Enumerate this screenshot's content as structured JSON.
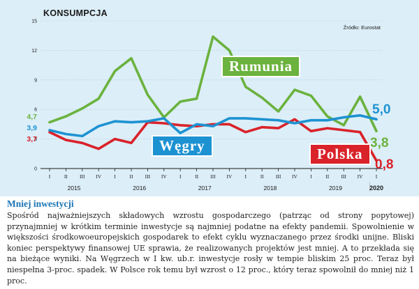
{
  "colors": {
    "panel_bg": "#dceef8",
    "rumunia": "#6bb23e",
    "wegry": "#1d92d2",
    "polska": "#d9222a",
    "axis_text": "#1a1a1a",
    "grid": "#a9c7d8"
  },
  "chart_data": {
    "type": "line",
    "title": "KONSUMPCJA",
    "source": "Źródło: Eurostat",
    "ylim": [
      0,
      15
    ],
    "yticks": [
      0,
      3,
      6,
      9,
      12,
      15
    ],
    "quarter_labels": [
      "I",
      "II",
      "III",
      "IV",
      "I",
      "II",
      "III",
      "IV",
      "I",
      "II",
      "III",
      "IV",
      "I",
      "II",
      "III",
      "IV",
      "I",
      "II",
      "III",
      "IV",
      "I"
    ],
    "year_labels": [
      {
        "label": "2015",
        "start": 0,
        "end": 3
      },
      {
        "label": "2016",
        "start": 4,
        "end": 7
      },
      {
        "label": "2017",
        "start": 8,
        "end": 11
      },
      {
        "label": "2018",
        "start": 12,
        "end": 15
      },
      {
        "label": "2019",
        "start": 16,
        "end": 19
      },
      {
        "label": "2020",
        "start": 20,
        "end": 20
      }
    ],
    "series": [
      {
        "key": "rumunia",
        "name": "Rumunia",
        "values": [
          4.7,
          5.3,
          6.1,
          7.1,
          9.9,
          11.2,
          7.5,
          5.2,
          6.8,
          7.1,
          13.4,
          12.0,
          8.3,
          7.2,
          5.8,
          8.0,
          7.4,
          5.3,
          4.4,
          7.3,
          3.8
        ]
      },
      {
        "key": "wegry",
        "name": "Węgry",
        "values": [
          3.9,
          3.5,
          3.3,
          4.3,
          4.8,
          4.7,
          4.8,
          5.1,
          3.6,
          4.5,
          4.3,
          5.1,
          5.1,
          5.0,
          4.9,
          4.6,
          4.9,
          4.9,
          5.2,
          5.4,
          5.0
        ]
      },
      {
        "key": "polska",
        "name": "Polska",
        "values": [
          3.7,
          2.9,
          2.6,
          2.0,
          3.0,
          2.6,
          4.7,
          4.6,
          4.4,
          4.3,
          4.5,
          4.5,
          3.7,
          4.2,
          4.1,
          5.0,
          3.8,
          4.1,
          3.9,
          3.7,
          0.8
        ]
      }
    ],
    "start_labels": {
      "rumunia": "4,7",
      "wegry": "3,9",
      "polska": "3,7"
    },
    "end_labels": {
      "rumunia": "3,8",
      "wegry": "5,0",
      "polska": "0,8"
    }
  },
  "article": {
    "heading": "Mniej inwestycji",
    "body": "Spośród najważniejszych składowych wzrostu gospodarczego (patrząc od strony popytowej) przynajmniej w krótkim terminie inwestycje są najmniej podatne na efekty pandemii. Spowolnienie w większości środkowoeuropejskich gospodarek to efekt cyklu wyznaczanego przez środki unijne. Bliski koniec perspektywy finansowej UE sprawia, że realizowanych projektów jest mniej. A to przekłada się na bieżące wyniki. Na Węgrzech w I kw. ub.r. inwestycje rosły w tempie bliskim 25 proc. Teraz był niespełna 3-proc. spadek. W Polsce rok temu był wzrost o 12 proc., który teraz spowolnił do mniej niż 1 proc."
  }
}
